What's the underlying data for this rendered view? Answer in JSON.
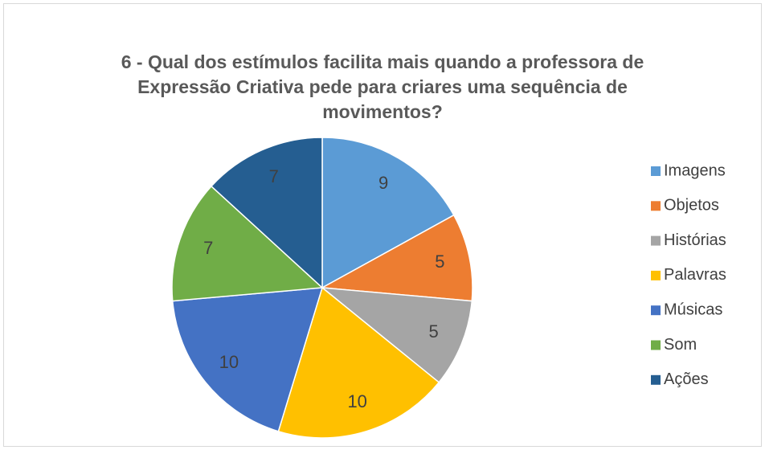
{
  "chart_data": {
    "type": "pie",
    "title": "6 - Qual dos estímulos facilita mais quando a professora de Expressão Criativa pede para criares uma sequência de movimentos?",
    "categories": [
      "Imagens",
      "Objetos",
      "Histórias",
      "Palavras",
      "Músicas",
      "Som",
      "Ações"
    ],
    "values": [
      9,
      5,
      5,
      10,
      10,
      7,
      7
    ],
    "colors": [
      "#5b9bd5",
      "#ed7d31",
      "#a5a5a5",
      "#ffc000",
      "#4472c4",
      "#70ad47",
      "#255e91"
    ],
    "legend": "right"
  }
}
